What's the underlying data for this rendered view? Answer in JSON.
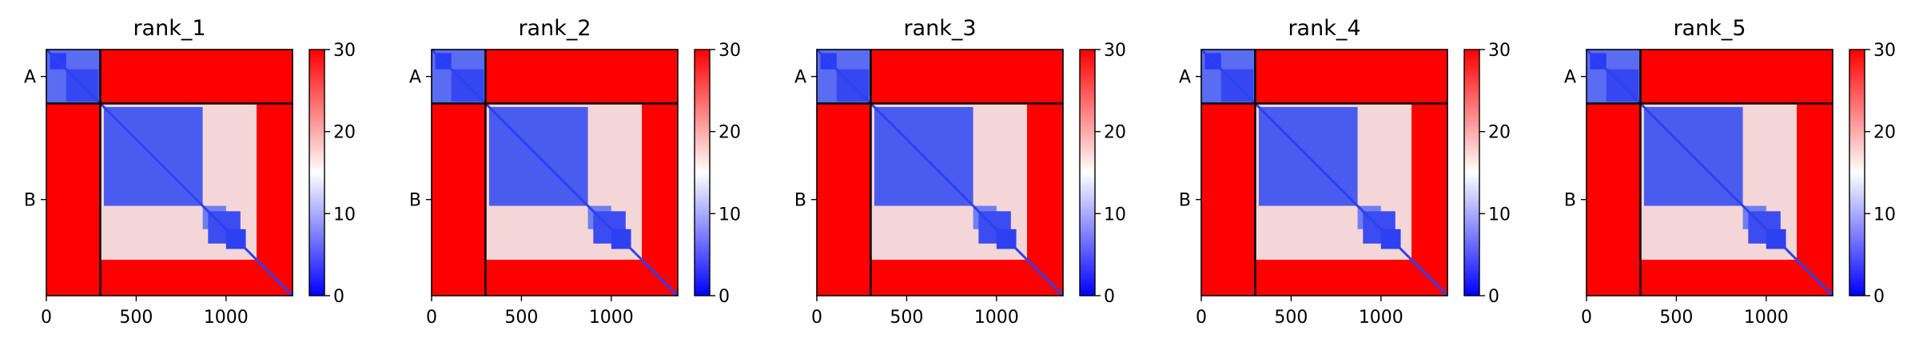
{
  "figure": {
    "colormap": {
      "low": "#0000ff",
      "mid": "#ffffff",
      "high": "#ff0000"
    }
  },
  "chart_data": [
    {
      "type": "heatmap",
      "title": "rank_1",
      "xlabel": "",
      "ylabel": "",
      "x_ticks": [
        0,
        500,
        1000
      ],
      "x_tick_labels": [
        "0",
        "500",
        "1000"
      ],
      "xlim": [
        0,
        1370
      ],
      "chain_boundary": 300,
      "y_tick_labels": [
        "A",
        "B"
      ],
      "colorbar": {
        "range": [
          0,
          30
        ],
        "ticks": [
          0,
          10,
          20,
          30
        ],
        "tick_labels": [
          "0",
          "10",
          "20",
          "30"
        ]
      }
    },
    {
      "type": "heatmap",
      "title": "rank_2",
      "xlabel": "",
      "ylabel": "",
      "x_ticks": [
        0,
        500,
        1000
      ],
      "x_tick_labels": [
        "0",
        "500",
        "1000"
      ],
      "xlim": [
        0,
        1370
      ],
      "chain_boundary": 300,
      "y_tick_labels": [
        "A",
        "B"
      ],
      "colorbar": {
        "range": [
          0,
          30
        ],
        "ticks": [
          0,
          10,
          20,
          30
        ],
        "tick_labels": [
          "0",
          "10",
          "20",
          "30"
        ]
      }
    },
    {
      "type": "heatmap",
      "title": "rank_3",
      "xlabel": "",
      "ylabel": "",
      "x_ticks": [
        0,
        500,
        1000
      ],
      "x_tick_labels": [
        "0",
        "500",
        "1000"
      ],
      "xlim": [
        0,
        1370
      ],
      "chain_boundary": 300,
      "y_tick_labels": [
        "A",
        "B"
      ],
      "colorbar": {
        "range": [
          0,
          30
        ],
        "ticks": [
          0,
          10,
          20,
          30
        ],
        "tick_labels": [
          "0",
          "10",
          "20",
          "30"
        ]
      }
    },
    {
      "type": "heatmap",
      "title": "rank_4",
      "xlabel": "",
      "ylabel": "",
      "x_ticks": [
        0,
        500,
        1000
      ],
      "x_tick_labels": [
        "0",
        "500",
        "1000"
      ],
      "xlim": [
        0,
        1370
      ],
      "chain_boundary": 300,
      "y_tick_labels": [
        "A",
        "B"
      ],
      "colorbar": {
        "range": [
          0,
          30
        ],
        "ticks": [
          0,
          10,
          20,
          30
        ],
        "tick_labels": [
          "0",
          "10",
          "20",
          "30"
        ]
      }
    },
    {
      "type": "heatmap",
      "title": "rank_5",
      "xlabel": "",
      "ylabel": "",
      "x_ticks": [
        0,
        500,
        1000
      ],
      "x_tick_labels": [
        "0",
        "500",
        "1000"
      ],
      "xlim": [
        0,
        1370
      ],
      "chain_boundary": 300,
      "y_tick_labels": [
        "A",
        "B"
      ],
      "colorbar": {
        "range": [
          0,
          30
        ],
        "ticks": [
          0,
          10,
          20,
          30
        ],
        "tick_labels": [
          "0",
          "10",
          "20",
          "30"
        ]
      }
    }
  ]
}
